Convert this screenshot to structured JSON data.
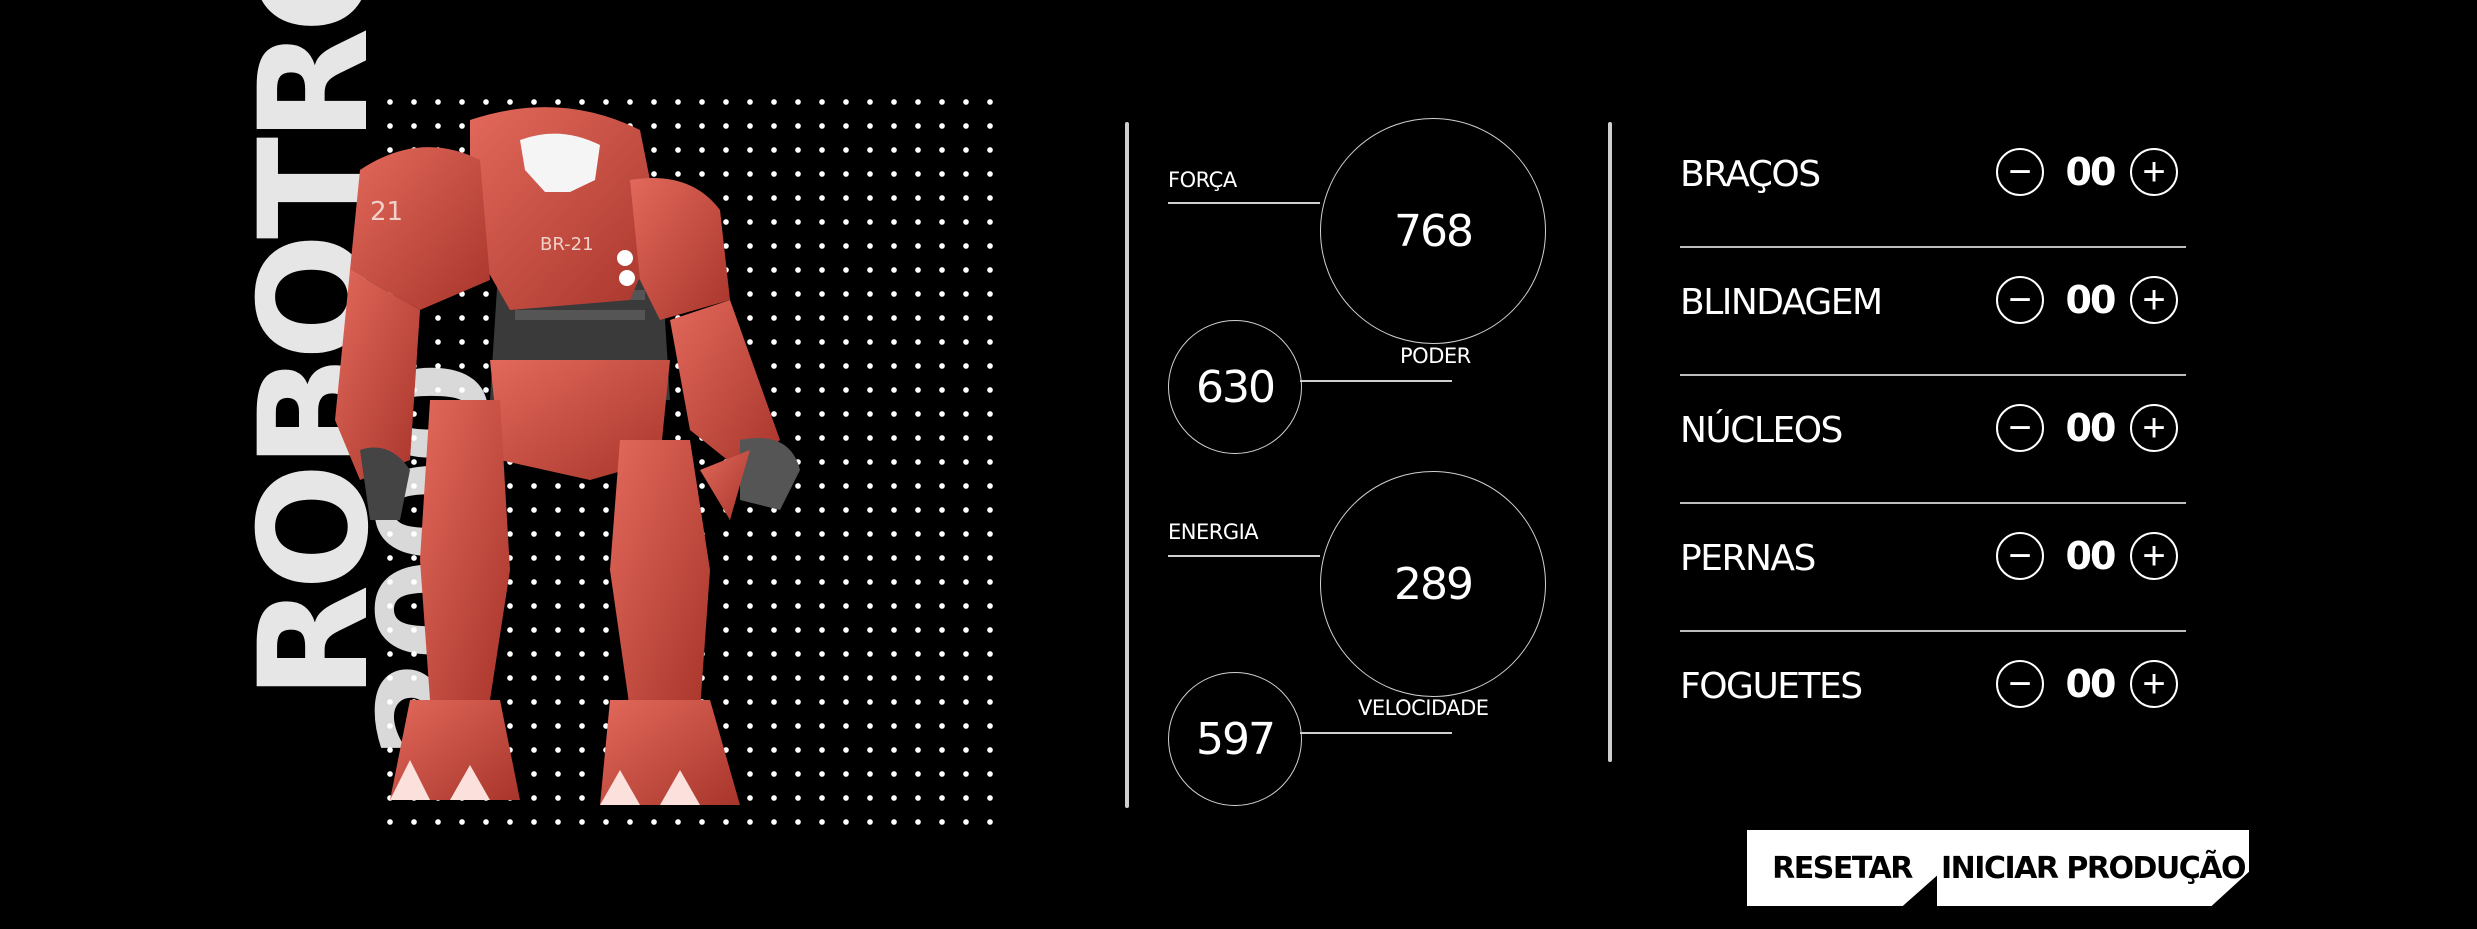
{
  "product": {
    "name_line1": "ROBOTRON",
    "name_line2": "2000"
  },
  "stats": [
    {
      "label": "FORÇA",
      "value": "768"
    },
    {
      "label": "PODER",
      "value": "630"
    },
    {
      "label": "ENERGIA",
      "value": "289"
    },
    {
      "label": "VELOCIDADE",
      "value": "597"
    }
  ],
  "parts": [
    {
      "name": "BRAÇOS",
      "qty": "00"
    },
    {
      "name": "BLINDAGEM",
      "qty": "00"
    },
    {
      "name": "NÚCLEOS",
      "qty": "00"
    },
    {
      "name": "PERNAS",
      "qty": "00"
    },
    {
      "name": "FOGUETES",
      "qty": "00"
    }
  ],
  "controls": {
    "minus": "−",
    "plus": "+"
  },
  "robot": {
    "badge": "BR-21",
    "shoulder": "21",
    "color": "#c9473a"
  },
  "buttons": {
    "reset": "RESETAR",
    "start": "INICIAR PRODUÇÃO"
  }
}
